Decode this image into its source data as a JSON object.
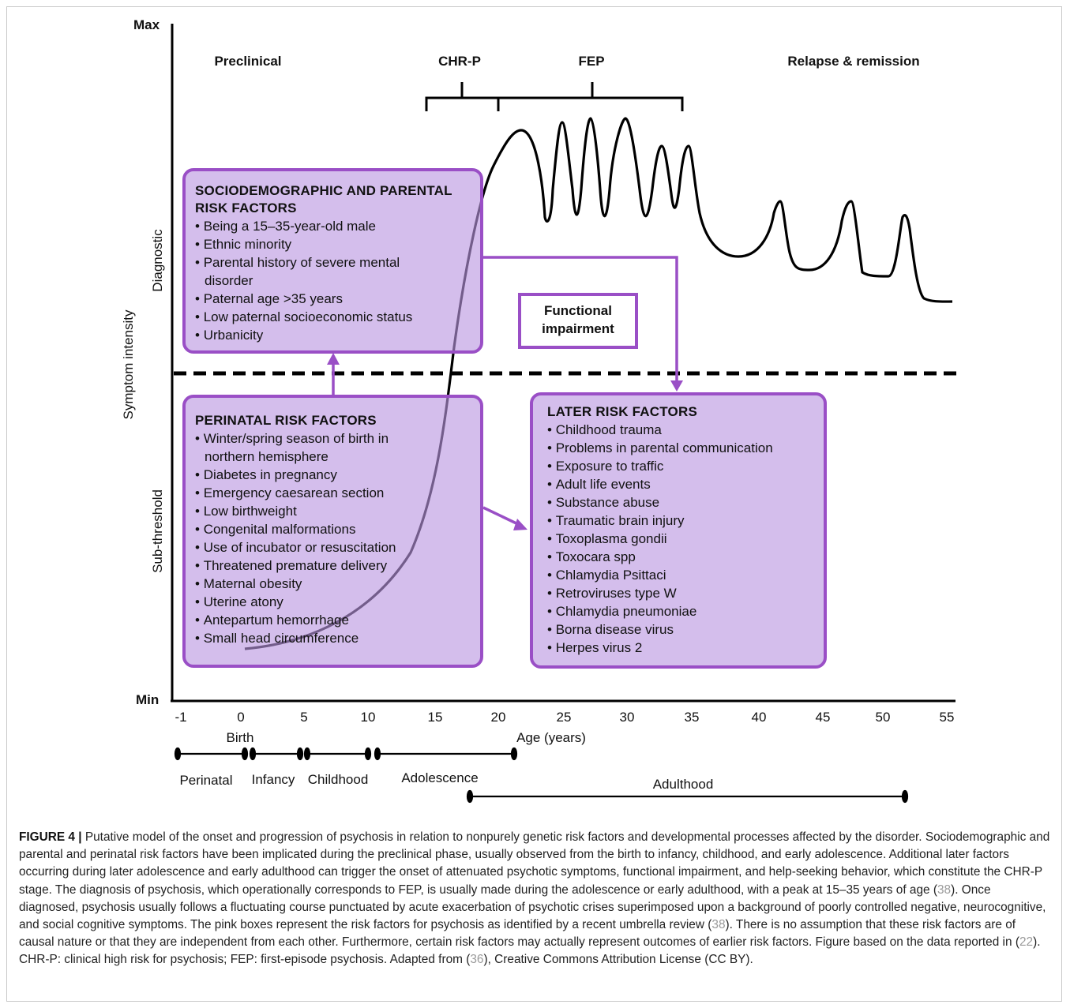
{
  "chart_data": {
    "type": "diagram",
    "yaxis": {
      "max_label": "Max",
      "min_label": "Min",
      "title": "Symptom intensity",
      "zones": [
        "Diagnostic",
        "Sub-threshold"
      ]
    },
    "xaxis": {
      "title": "Age (years)",
      "ticks": [
        "-1",
        "0",
        "5",
        "10",
        "15",
        "20",
        "25",
        "30",
        "35",
        "40",
        "45",
        "50",
        "55"
      ],
      "range": [
        -1,
        55
      ]
    },
    "stages": [
      "Preclinical",
      "CHR-P",
      "FEP",
      "Relapse & remission"
    ],
    "birth_label": "Birth",
    "periods": [
      {
        "label": "Perinatal",
        "from": -1,
        "to": 0.5
      },
      {
        "label": "Infancy",
        "from": 0.5,
        "to": 4.5
      },
      {
        "label": "Childhood",
        "from": 5,
        "to": 10
      },
      {
        "label": "Adolescence",
        "from": 10.5,
        "to": 21
      },
      {
        "label": "Adulthood",
        "from": 17.5,
        "to": 52
      }
    ]
  },
  "boxes": {
    "socio": {
      "title": "SOCIODEMOGRAPHIC AND PARENTAL RISK FACTORS",
      "items": [
        "Being a 15–35-year-old male",
        "Ethnic minority",
        "Parental history of severe mental disorder",
        "Paternal age >35 years",
        "Low paternal socioeconomic status",
        "Urbanicity"
      ]
    },
    "peri": {
      "title": "PERINATAL RISK FACTORS",
      "items": [
        "Winter/spring season of birth in northern hemisphere",
        "Diabetes in pregnancy",
        "Emergency caesarean section",
        "Low birthweight",
        "Congenital malformations",
        "Use of incubator or resuscitation",
        "Threatened premature delivery",
        "Maternal obesity",
        "Uterine atony",
        "Antepartum hemorrhage",
        "Small head circumference"
      ]
    },
    "later": {
      "title": "LATER RISK FACTORS",
      "items": [
        "Childhood trauma",
        "Problems in parental communication",
        "Exposure to traffic",
        "Adult life events",
        "Substance abuse",
        "Traumatic brain injury",
        "Toxoplasma gondii",
        "Toxocara spp",
        "Chlamydia Psittaci",
        "Retroviruses type W",
        "Chlamydia pneumoniae",
        "Borna disease virus",
        "Herpes virus 2"
      ]
    },
    "functional": "Functional impairment"
  },
  "caption": {
    "label": "FIGURE 4 |",
    "p1": " Putative model of the onset and progression of psychosis in relation to nonpurely genetic risk factors and developmental processes affected by the disorder. Sociodemographic and parental and perinatal risk factors have been implicated during the preclinical phase, usually observed from the birth to infancy, childhood, and early adolescence. Additional later factors occurring during later adolescence and early adulthood can trigger the onset of attenuated psychotic symptoms, functional impairment, and help-seeking behavior, which constitute the CHR-P stage. The diagnosis of psychosis, which operationally corresponds to FEP, is usually made during the adolescence or early adulthood, with a peak at 15–35 years of age (",
    "r1": "38",
    "p2": "). Once diagnosed, psychosis usually follows a fluctuating course punctuated by acute exacerbation of psychotic crises superimposed upon a background of poorly controlled negative, neurocognitive, and social cognitive symptoms. The pink boxes represent the risk factors for psychosis as identified by a recent umbrella review (",
    "r2": "38",
    "p3": "). There is no assumption that these risk factors are of causal nature or that they are independent from each other. Furthermore, certain risk factors may actually represent outcomes of earlier risk factors. Figure based on the data reported in (",
    "r3": "22",
    "p4": "). CHR-P: clinical high risk for psychosis; FEP: first-episode psychosis. Adapted from (",
    "r4": "36",
    "p5": "), Creative Commons Attribution License (CC BY)."
  }
}
